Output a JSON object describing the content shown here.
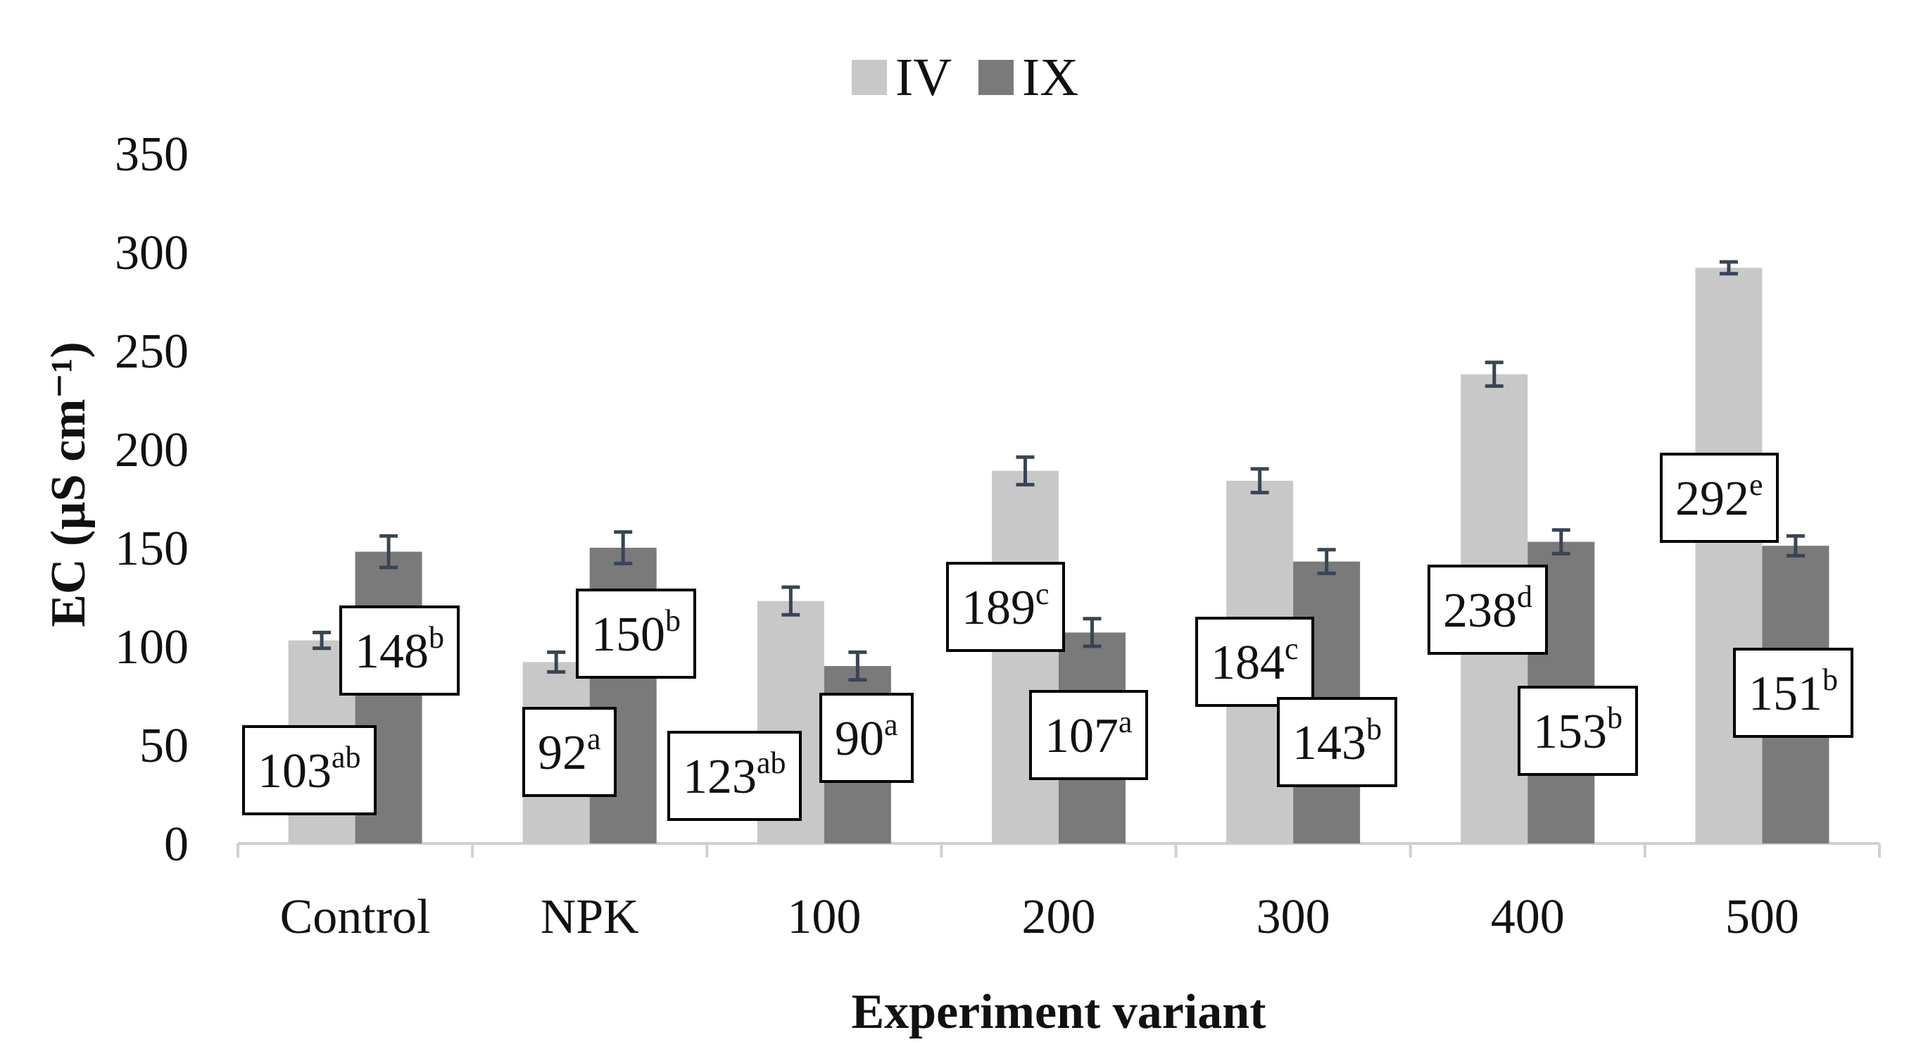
{
  "chart_data": {
    "type": "bar",
    "title": "",
    "xlabel": "Experiment variant",
    "ylabel": "EC (µS cm⁻¹)",
    "ylim": [
      0,
      350
    ],
    "yticks": [
      0,
      50,
      100,
      150,
      200,
      250,
      300,
      350
    ],
    "grid": false,
    "legend_position": "top-center",
    "categories": [
      "Control",
      "NPK",
      "100",
      "200",
      "300",
      "400",
      "500"
    ],
    "series": [
      {
        "name": "IV",
        "color": "#c8c8c8",
        "values": [
          103,
          92,
          123,
          189,
          184,
          238,
          292
        ],
        "errors": [
          4,
          5,
          7,
          7,
          6,
          6,
          3
        ],
        "letters": [
          "ab",
          "a",
          "ab",
          "c",
          "c",
          "d",
          "e"
        ]
      },
      {
        "name": "IX",
        "color": "#7a7a7a",
        "values": [
          148,
          150,
          90,
          107,
          143,
          153,
          151
        ],
        "errors": [
          8,
          8,
          7,
          7,
          6,
          6,
          5
        ],
        "letters": [
          "b",
          "b",
          "a",
          "a",
          "b",
          "b",
          "b"
        ]
      }
    ],
    "error_bar_color": "#3a4455"
  }
}
